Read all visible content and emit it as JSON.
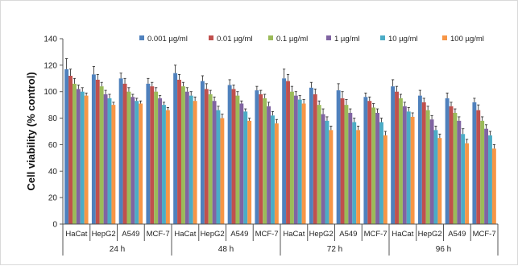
{
  "chart_data": {
    "type": "bar",
    "ylabel": "Cell viability (% control)",
    "xlabel": "",
    "ylim": [
      0,
      140
    ],
    "yticks": [
      0,
      20,
      40,
      60,
      80,
      100,
      120,
      140
    ],
    "grid": false,
    "legend_position": "top",
    "groups": [
      "24 h",
      "48 h",
      "72 h",
      "96 h"
    ],
    "cell_lines": [
      "HaCat",
      "HepG2",
      "A549",
      "MCF-7"
    ],
    "categories": [
      "HaCat",
      "HepG2",
      "A549",
      "MCF-7",
      "HaCat",
      "HepG2",
      "A549",
      "MCF-7",
      "HaCat",
      "HepG2",
      "A549",
      "MCF-7",
      "HaCat",
      "HepG2",
      "A549",
      "MCF-7"
    ],
    "series": [
      {
        "name": "0.001 µg/ml",
        "color": "#4F81BD",
        "values": [
          117,
          113,
          110,
          106,
          114,
          108,
          105,
          101,
          110,
          103,
          101,
          96,
          104,
          97,
          95,
          92
        ],
        "errors": [
          8,
          6,
          4,
          4,
          6,
          4,
          4,
          3,
          7,
          4,
          5,
          3,
          5,
          4,
          4,
          3
        ]
      },
      {
        "name": "0.01 µg/ml",
        "color": "#C0504D",
        "values": [
          112,
          109,
          106,
          104,
          109,
          102,
          102,
          98,
          108,
          98,
          95,
          93,
          100,
          92,
          89,
          86
        ],
        "errors": [
          5,
          4,
          4,
          3,
          4,
          4,
          3,
          3,
          5,
          4,
          5,
          3,
          4,
          3,
          3,
          4
        ]
      },
      {
        "name": "0.1 µg/ml",
        "color": "#9BBB59",
        "values": [
          106,
          104,
          100,
          100,
          104,
          98,
          97,
          95,
          100,
          90,
          90,
          88,
          95,
          86,
          84,
          78
        ],
        "errors": [
          4,
          3,
          3,
          3,
          3,
          3,
          3,
          3,
          4,
          3,
          4,
          3,
          3,
          3,
          3,
          3
        ]
      },
      {
        "name": "1 µg/ml",
        "color": "#8064A2",
        "values": [
          102,
          98,
          96,
          95,
          100,
          93,
          91,
          89,
          97,
          83,
          84,
          84,
          89,
          79,
          78,
          72
        ],
        "errors": [
          3,
          3,
          2,
          2,
          3,
          3,
          2,
          3,
          3,
          4,
          3,
          3,
          3,
          3,
          3,
          3
        ]
      },
      {
        "name": "10 µg/ml",
        "color": "#4BACC6",
        "values": [
          100,
          95,
          93,
          90,
          97,
          86,
          85,
          82,
          94,
          78,
          77,
          77,
          85,
          71,
          68,
          67
        ],
        "errors": [
          3,
          3,
          2,
          2,
          3,
          3,
          2,
          3,
          3,
          3,
          3,
          3,
          3,
          3,
          4,
          3
        ]
      },
      {
        "name": "100 µg/ml",
        "color": "#F79646",
        "values": [
          97,
          90,
          91,
          86,
          93,
          80,
          78,
          76,
          91,
          71,
          71,
          67,
          81,
          65,
          61,
          57
        ],
        "errors": [
          2,
          2,
          2,
          2,
          3,
          3,
          2,
          3,
          3,
          3,
          3,
          3,
          3,
          3,
          3,
          3
        ]
      }
    ]
  }
}
